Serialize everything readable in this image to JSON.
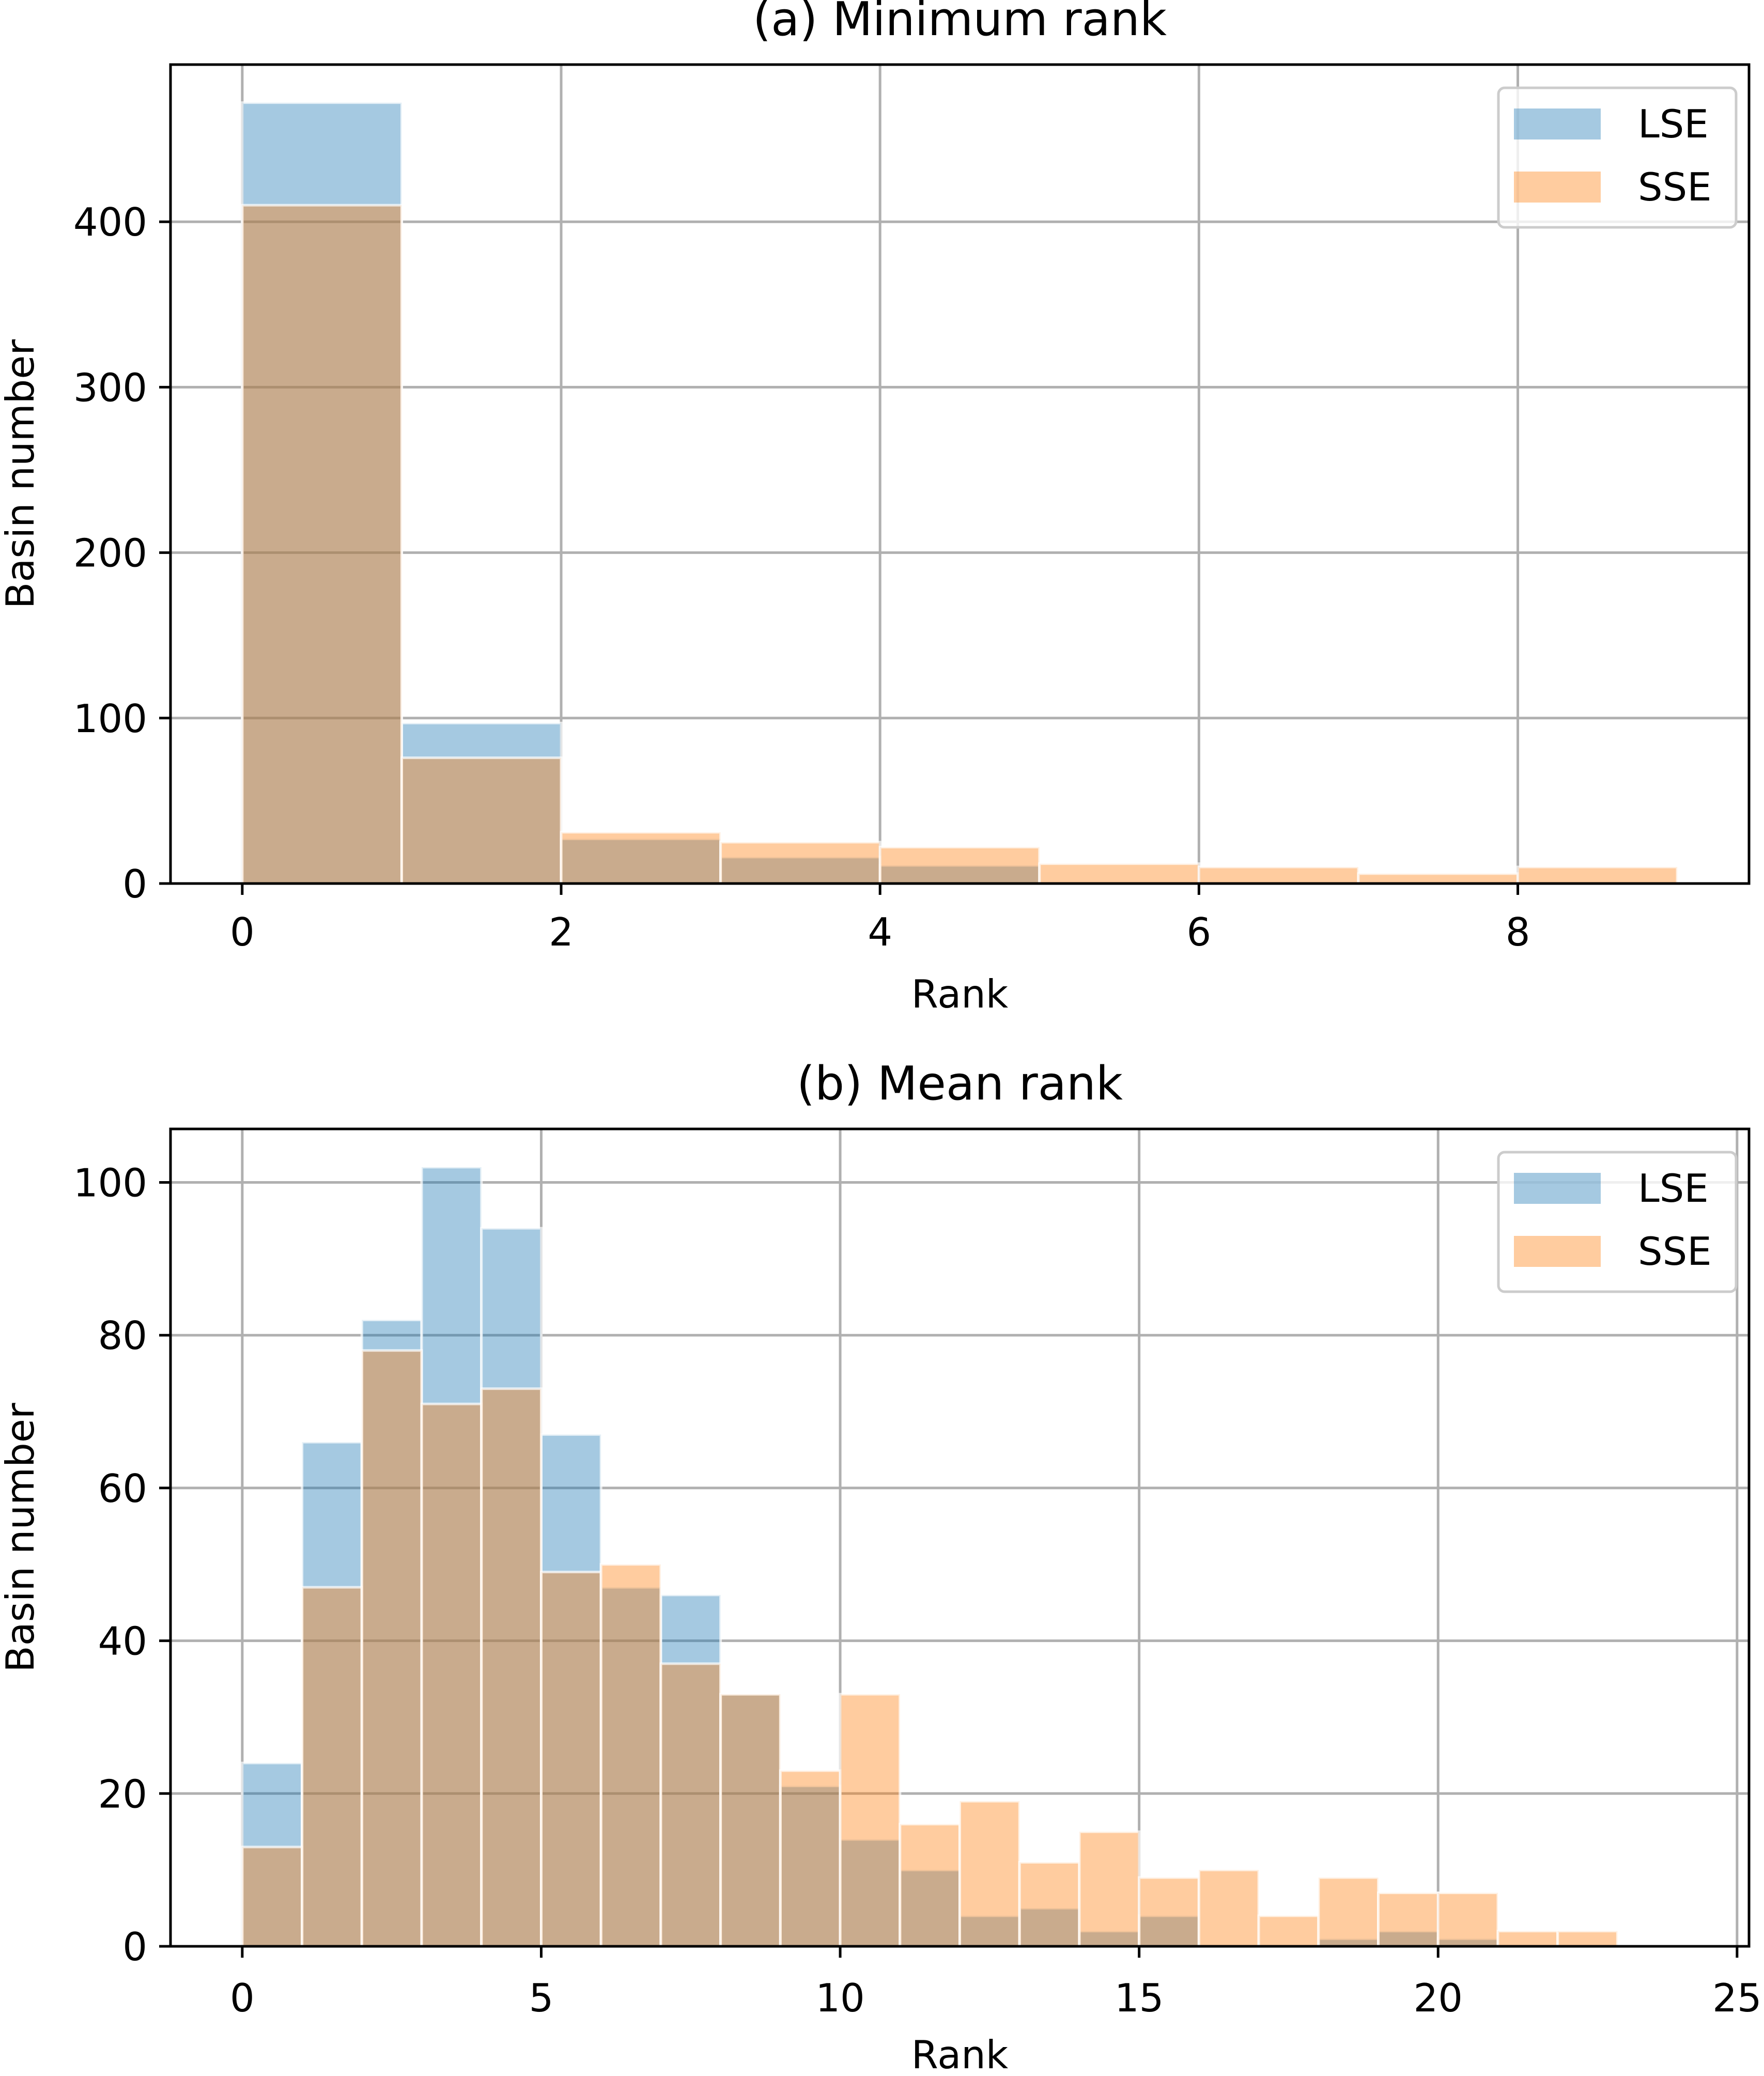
{
  "colors": {
    "LSE": "#1f77b4",
    "SSE": "#ff7f0e",
    "grid": "#b0b0b0",
    "axes": "#000000"
  },
  "chart_data": [
    {
      "type": "bar",
      "title": "(a) Minimum rank",
      "xlabel": "Rank",
      "ylabel": "Basin number",
      "xlim": [
        -0.45,
        9.45
      ],
      "ylim": [
        0,
        495
      ],
      "xticks": [
        0,
        2,
        4,
        6,
        8
      ],
      "xtick_labels": [
        "0",
        "2",
        "4",
        "6",
        "8"
      ],
      "yticks": [
        0,
        100,
        200,
        300,
        400
      ],
      "ytick_labels": [
        "0",
        "100",
        "200",
        "300",
        "400"
      ],
      "grid": true,
      "legend_position": "top-right",
      "bin_edges": [
        0,
        1,
        2,
        3,
        4,
        5,
        6,
        7,
        8,
        9
      ],
      "series": [
        {
          "name": "LSE",
          "values": [
            472,
            97,
            27,
            16,
            11,
            0,
            0,
            0,
            0
          ]
        },
        {
          "name": "SSE",
          "values": [
            410,
            76,
            31,
            25,
            22,
            12,
            10,
            6,
            10
          ]
        }
      ]
    },
    {
      "type": "bar",
      "title": "(b) Mean rank",
      "xlabel": "Rank",
      "ylabel": "Basin number",
      "xlim": [
        -1.2,
        25.2
      ],
      "ylim": [
        0,
        107
      ],
      "xticks": [
        0,
        5,
        10,
        15,
        20,
        25
      ],
      "xtick_labels": [
        "0",
        "5",
        "10",
        "15",
        "20",
        "25"
      ],
      "yticks": [
        0,
        20,
        40,
        60,
        80,
        100
      ],
      "ytick_labels": [
        "0",
        "20",
        "40",
        "60",
        "80",
        "100"
      ],
      "grid": true,
      "legend_position": "top-right",
      "bin_edges": [
        0,
        1,
        2,
        3,
        4,
        5,
        6,
        7,
        8,
        9,
        10,
        11,
        12,
        13,
        14,
        15,
        16,
        17,
        18,
        19,
        20,
        21,
        22,
        23
      ],
      "series": [
        {
          "name": "LSE",
          "values": [
            24,
            66,
            82,
            102,
            94,
            67,
            47,
            46,
            33,
            21,
            14,
            10,
            4,
            5,
            2,
            4,
            0,
            0,
            1,
            2,
            1,
            0,
            0
          ]
        },
        {
          "name": "SSE",
          "values": [
            13,
            47,
            78,
            71,
            73,
            49,
            50,
            37,
            33,
            23,
            33,
            16,
            19,
            11,
            15,
            9,
            10,
            4,
            9,
            7,
            7,
            2,
            2
          ]
        }
      ]
    }
  ]
}
